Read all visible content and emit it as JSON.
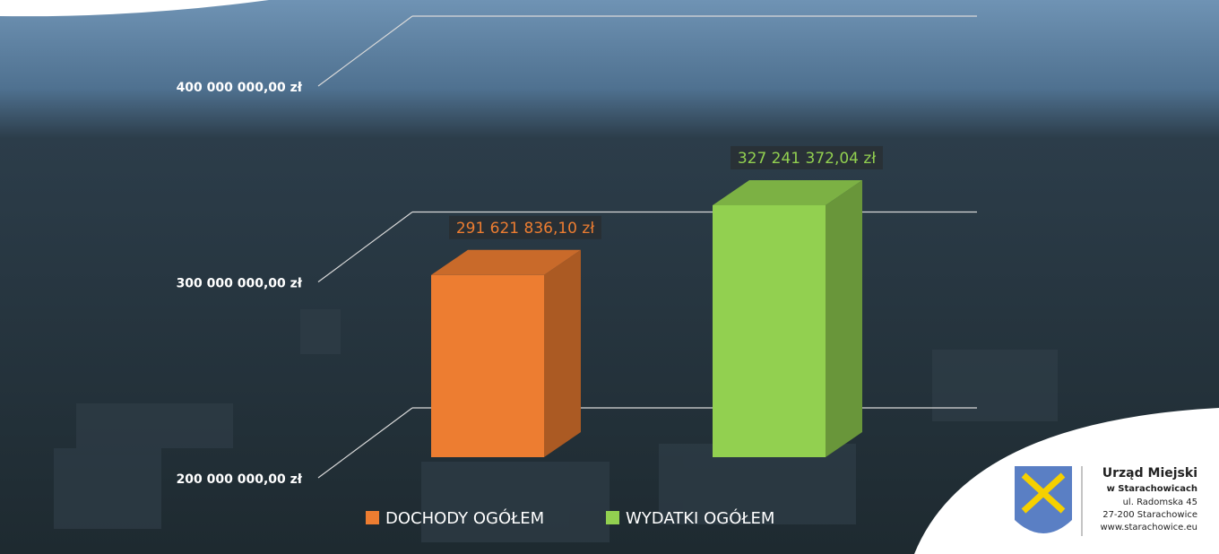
{
  "chart_data": {
    "type": "bar",
    "categories": [
      "DOCHODY OGÓŁEM",
      "WYDATKI OGÓŁEM"
    ],
    "values": [
      291621836.1,
      327241372.04
    ],
    "value_labels": [
      "291 621 836,10 zł",
      "327 241 372,04 zł"
    ],
    "colors": [
      "#ed7d31",
      "#92d050"
    ],
    "ylim": [
      200000000,
      400000000
    ],
    "yticks": [
      {
        "value": 200000000,
        "label": "200 000 000,00 zł"
      },
      {
        "value": 300000000,
        "label": "300 000 000,00 zł"
      },
      {
        "value": 400000000,
        "label": "400 000 000,00 zł"
      }
    ],
    "grid": true
  },
  "logo": {
    "name": "Urząd Miejski",
    "place": "w Starachowicach",
    "street": "ul. Radomska 45",
    "city": "27-200 Starachowice",
    "web": "www.starachowice.eu"
  }
}
